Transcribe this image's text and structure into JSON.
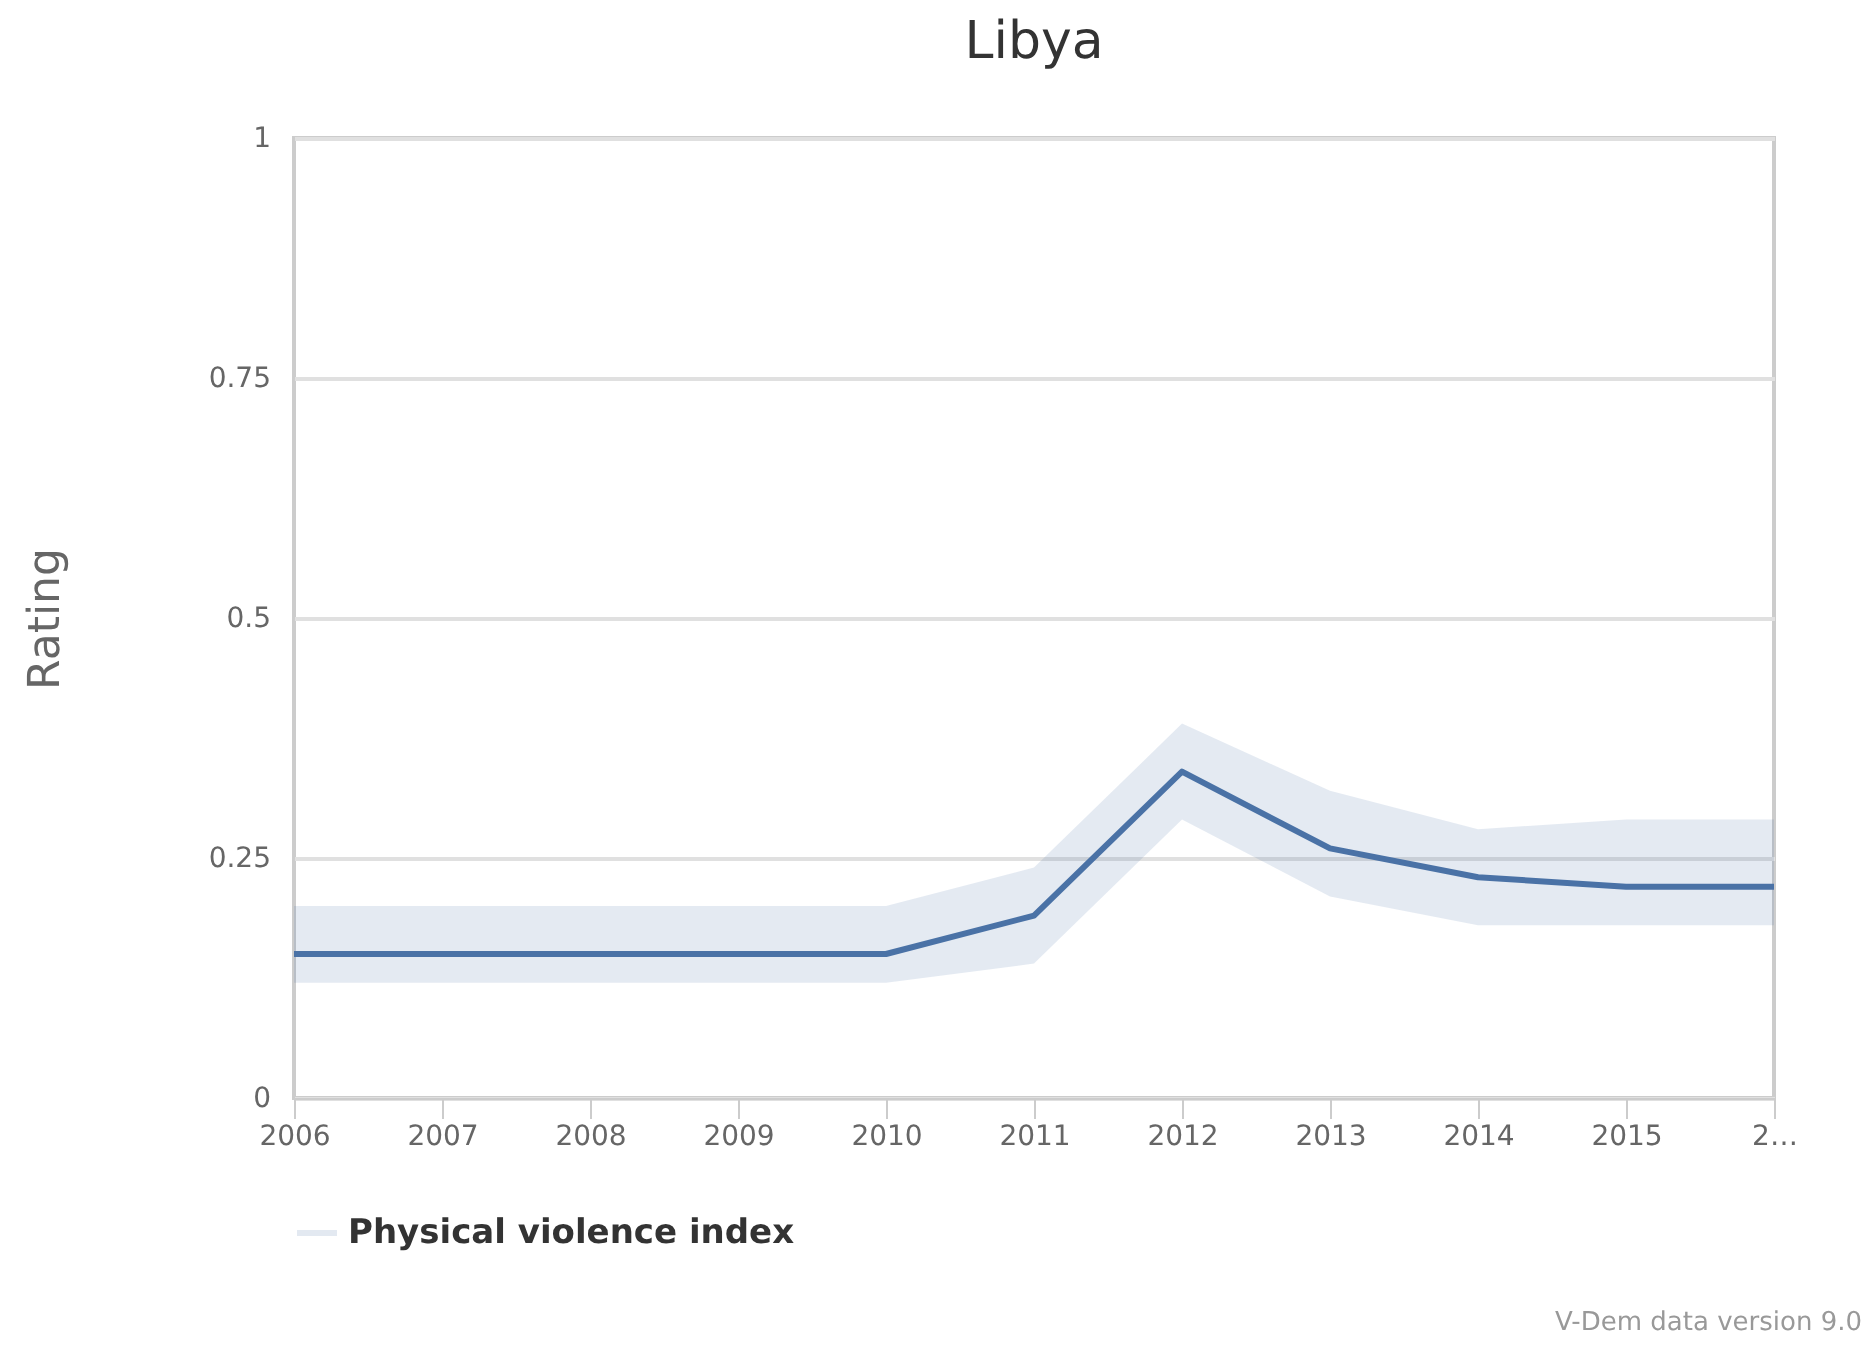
{
  "chart_data": {
    "type": "line",
    "title": "Libya",
    "ylabel": "Rating",
    "x": [
      2006,
      2007,
      2008,
      2009,
      2010,
      2011,
      2012,
      2013,
      2014,
      2015,
      2016
    ],
    "series": [
      {
        "name": "Physical violence index",
        "color": "#4a72a6",
        "values": [
          0.15,
          0.15,
          0.15,
          0.15,
          0.15,
          0.19,
          0.34,
          0.26,
          0.23,
          0.22,
          0.22
        ],
        "lower": [
          0.12,
          0.12,
          0.12,
          0.12,
          0.12,
          0.14,
          0.29,
          0.21,
          0.18,
          0.18,
          0.18
        ],
        "upper": [
          0.2,
          0.2,
          0.2,
          0.2,
          0.2,
          0.24,
          0.39,
          0.32,
          0.28,
          0.29,
          0.29
        ]
      }
    ],
    "xlim": [
      2006,
      2016
    ],
    "xticks": [
      2006,
      2007,
      2008,
      2009,
      2010,
      2011,
      2012,
      2013,
      2014,
      2015,
      {
        "value": 2016,
        "label": "2…"
      }
    ],
    "ylim": [
      0,
      1
    ],
    "yticks": [
      0,
      0.25,
      0.5,
      0.75,
      1
    ],
    "grid": "y",
    "legend": "bottom",
    "marker": "none",
    "line_style": "solid",
    "annotations": [
      "V-Dem data version 9.0"
    ]
  }
}
